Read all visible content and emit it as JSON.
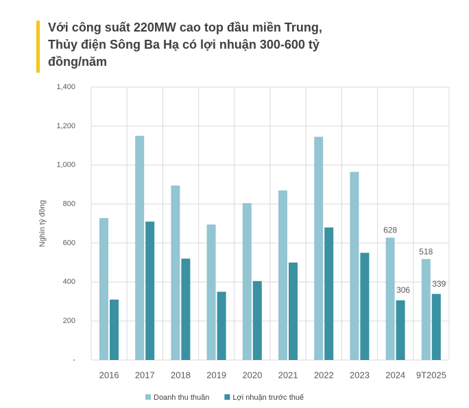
{
  "chart_data": {
    "type": "bar",
    "title": "Với công suất 220MW cao top đầu miền Trung, Thủy điện Sông Ba Hạ có lợi nhuận 300-600 tỷ đồng/năm",
    "y_label": "Nghìn tỷ đồng",
    "categories": [
      "2016",
      "2017",
      "2018",
      "2019",
      "2020",
      "2021",
      "2022",
      "2023",
      "2024",
      "9T2025"
    ],
    "series": [
      {
        "name": "Doanh thu thuần",
        "color": "#93c5d3",
        "values": [
          728,
          1150,
          895,
          695,
          805,
          870,
          1145,
          965,
          628,
          518
        ],
        "value_labels": [
          null,
          null,
          null,
          null,
          null,
          null,
          null,
          null,
          "628",
          "518"
        ]
      },
      {
        "name": "Lợi nhuận trước thuế",
        "color": "#3a91a1",
        "values": [
          310,
          710,
          520,
          350,
          405,
          500,
          680,
          550,
          306,
          339
        ],
        "value_labels": [
          null,
          null,
          null,
          null,
          null,
          null,
          null,
          null,
          "306",
          "339"
        ]
      }
    ],
    "ylim": [
      0,
      1400
    ],
    "yticks": [
      {
        "value": 0,
        "label": "-"
      },
      200,
      400,
      600,
      800,
      {
        "value": 1000,
        "label": "1,000"
      },
      {
        "value": 1200,
        "label": "1,200"
      },
      {
        "value": 1400,
        "label": "1,400"
      }
    ],
    "grid": true,
    "legend": "bottom"
  }
}
